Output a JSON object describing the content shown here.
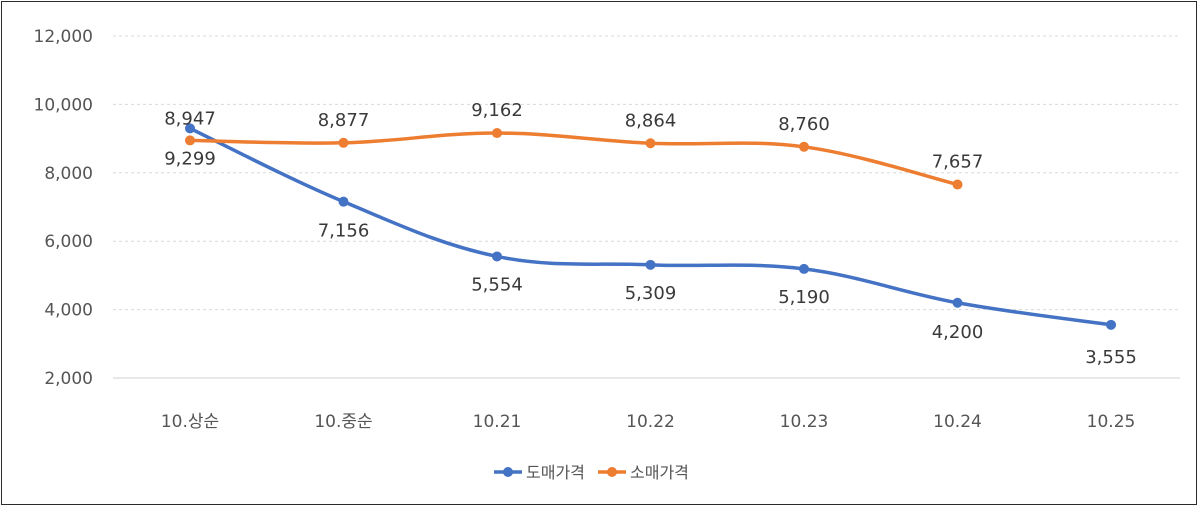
{
  "chart_data": {
    "type": "line",
    "categories": [
      "10.상순",
      "10.중순",
      "10.21",
      "10.22",
      "10.23",
      "10.24",
      "10.25"
    ],
    "series": [
      {
        "name": "도매가격",
        "color": "#4472C4",
        "values": [
          9299,
          7156,
          5554,
          5309,
          5190,
          4200,
          3555
        ]
      },
      {
        "name": "소매가격",
        "color": "#ED7D31",
        "values": [
          8947,
          8877,
          9162,
          8864,
          8760,
          7657,
          null
        ]
      }
    ],
    "y_ticks": [
      "2,000",
      "4,000",
      "6,000",
      "8,000",
      "10,000",
      "12,000"
    ],
    "ylim": [
      2000,
      12000
    ],
    "grid": true,
    "legend_position": "bottom"
  }
}
